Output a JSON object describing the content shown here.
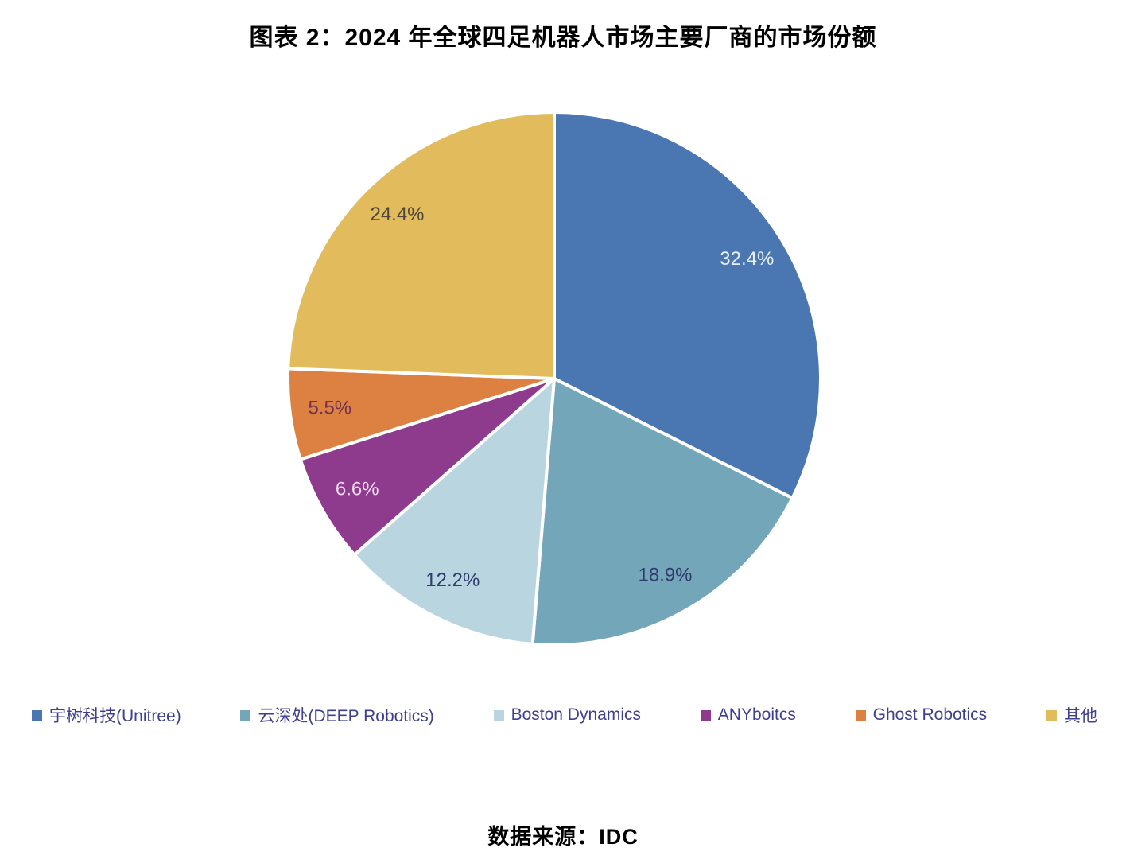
{
  "title": "图表 2：2024 年全球四足机器人市场主要厂商的市场份额",
  "source": "数据来源：IDC",
  "chart_data": {
    "type": "pie",
    "title": "图表 2：2024 年全球四足机器人市场主要厂商的市场份额",
    "categories": [
      "宇树科技(Unitree)",
      "云深处(DEEP Robotics)",
      "Boston Dynamics",
      "ANYboitcs",
      "Ghost Robotics",
      "其他"
    ],
    "values": [
      32.4,
      18.9,
      12.2,
      6.6,
      5.5,
      24.4
    ],
    "data_labels": [
      "32.4%",
      "18.9%",
      "12.2%",
      "6.6%",
      "5.5%",
      "24.4%"
    ],
    "colors": [
      "#4a76b2",
      "#74a6ba",
      "#b9d5df",
      "#8e3b8e",
      "#dd8142",
      "#e2bc5c"
    ],
    "data_label_colors": [
      "#e9f0f9",
      "#2f3a6e",
      "#2f3a6e",
      "#f0d9ee",
      "#6e3250",
      "#51463b"
    ],
    "start_angle_deg": 0,
    "direction": "clockwise",
    "slice_border_color": "#ffffff",
    "legend_position": "bottom",
    "legend_text_color": "#3f3f8f",
    "source_note": "数据来源：IDC"
  }
}
